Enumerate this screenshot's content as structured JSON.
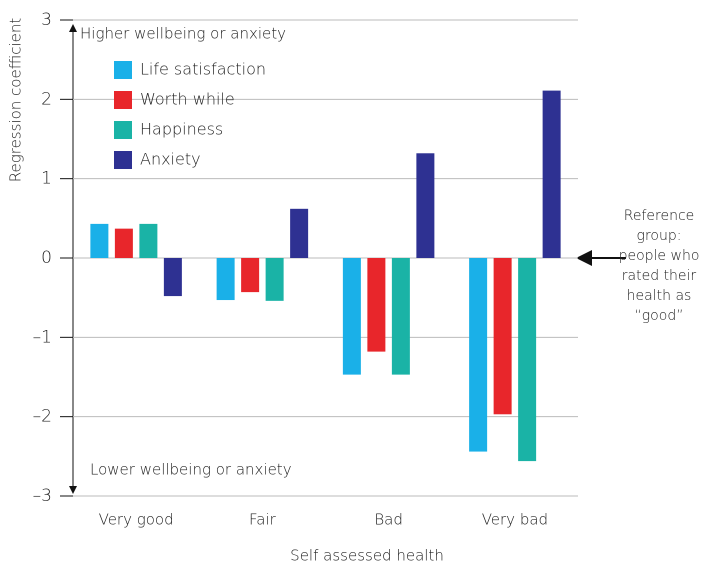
{
  "chart_data": {
    "type": "bar",
    "y_axis_label": "Regression coefficient",
    "x_axis_label": "Self assessed health",
    "categories": [
      "Very good",
      "Fair",
      "Bad",
      "Very bad"
    ],
    "series": [
      {
        "name": "Life satisfaction",
        "color": "#1ab0e8",
        "values": [
          0.43,
          -0.53,
          -1.47,
          -2.44
        ]
      },
      {
        "name": "Worth while",
        "color": "#e8262b",
        "values": [
          0.37,
          -0.43,
          -1.18,
          -1.97
        ]
      },
      {
        "name": "Happiness",
        "color": "#1ab3a6",
        "values": [
          0.43,
          -0.54,
          -1.47,
          -2.56
        ]
      },
      {
        "name": "Anxiety",
        "color": "#2e3192",
        "values": [
          -0.48,
          0.62,
          1.32,
          2.11
        ]
      }
    ],
    "ylim": [
      -3,
      3
    ],
    "yticks": [
      {
        "value": -3,
        "label": "–3"
      },
      {
        "value": -2,
        "label": "–2"
      },
      {
        "value": -1,
        "label": "–1"
      },
      0,
      1,
      2,
      3
    ],
    "grid": true,
    "annotations": {
      "top": "Higher wellbeing or anxiety",
      "bottom": "Lower wellbeing or anxiety",
      "reference": [
        "Reference",
        "group:",
        "people who",
        "rated their",
        "health as",
        "“good”"
      ]
    }
  }
}
